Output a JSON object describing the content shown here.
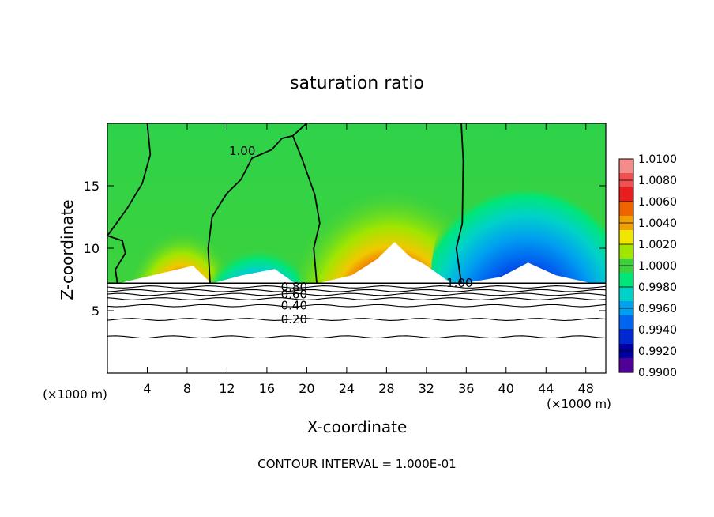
{
  "chart_data": {
    "type": "heatmap",
    "title": "saturation ratio",
    "xlabel": "X-coordinate",
    "ylabel": "Z-coordinate",
    "x_unit_left": "(×1000 m)",
    "x_unit_right": "(×1000 m)",
    "xlim": [
      0,
      50
    ],
    "ylim": [
      0,
      20
    ],
    "xticks": [
      4,
      8,
      12,
      16,
      20,
      24,
      28,
      32,
      36,
      40,
      44,
      48
    ],
    "yticks": [
      5,
      10,
      15
    ],
    "footer": "CONTOUR INTERVAL = 1.000E-01",
    "colorbar": {
      "ticks": [
        "1.0100",
        "1.0080",
        "1.0060",
        "1.0040",
        "1.0020",
        "1.0000",
        "0.9980",
        "0.9960",
        "0.9940",
        "0.9920",
        "0.9900"
      ],
      "colors": [
        "#f48c8c",
        "#f05050",
        "#e81e1e",
        "#f06400",
        "#f0a000",
        "#f0e600",
        "#a0e600",
        "#3cd23c",
        "#00e678",
        "#00d2c8",
        "#00a0f0",
        "#0064f0",
        "#0028d2",
        "#0000a0",
        "#500096"
      ]
    },
    "cloud_top_z": 7.2,
    "contour_labels": [
      {
        "text": "1.00",
        "x": 12.2,
        "z": 17.8
      },
      {
        "text": "1.00",
        "x": 34.0,
        "z": 7.2
      },
      {
        "text": "0.80",
        "x": 17.4,
        "z": 6.9
      },
      {
        "text": "0.60",
        "x": 17.4,
        "z": 6.3
      },
      {
        "text": "0.40",
        "x": 17.4,
        "z": 5.4
      },
      {
        "text": "0.20",
        "x": 17.4,
        "z": 4.3
      }
    ],
    "below_cloud_isolines": [
      6.9,
      6.6,
      6.3,
      5.95,
      5.4,
      4.3,
      2.9
    ]
  }
}
